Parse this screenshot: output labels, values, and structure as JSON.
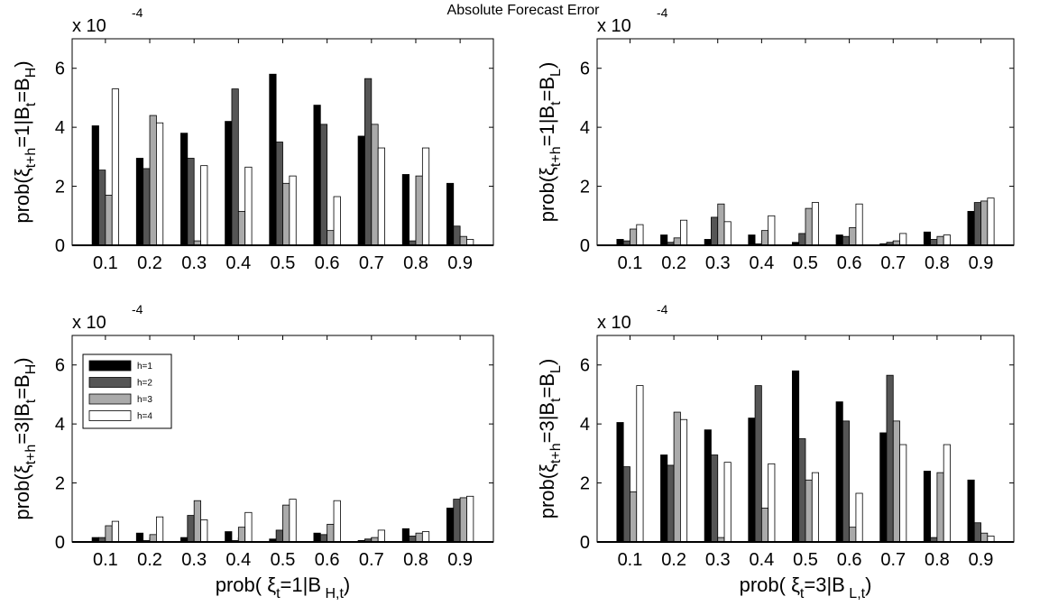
{
  "figure_title": "Absolute Forecast Error",
  "legend": {
    "entries": [
      "h=1",
      "h=2",
      "h=3",
      "h=4"
    ]
  },
  "colors": {
    "h1": "#000000",
    "h2": "#555555",
    "h3": "#aaaaaa",
    "h4": "#ffffff"
  },
  "panels": [
    {
      "multiplier": "x 10",
      "exponent": "-4",
      "ylabel": {
        "pre": "prob(",
        "xi": "ξ",
        "sub1": "t+h",
        "mid": "=1|B",
        "sub2": "t",
        "mid2": "=B",
        "sub3": "H",
        "post": ")"
      }
    },
    {
      "multiplier": "x 10",
      "exponent": "-4",
      "ylabel": {
        "pre": "prob(",
        "xi": "ξ",
        "sub1": "t+h",
        "mid": "=1|B",
        "sub2": "t",
        "mid2": "=B",
        "sub3": "L",
        "post": ")"
      }
    },
    {
      "multiplier": "x 10",
      "exponent": "-4",
      "ylabel": {
        "pre": "prob(",
        "xi": "ξ",
        "sub1": "t+h",
        "mid": "=3|B",
        "sub2": "t",
        "mid2": "=B",
        "sub3": "H",
        "post": ")"
      },
      "xlabel": {
        "pre": "prob(  ",
        "xi": "ξ",
        "sub1": "t",
        "mid": "=1|B",
        "sub2": " H,t",
        "post": ")"
      }
    },
    {
      "multiplier": "x 10",
      "exponent": "-4",
      "ylabel": {
        "pre": "prob(",
        "xi": "ξ",
        "sub1": "t+h",
        "mid": "=3|B",
        "sub2": "t",
        "mid2": "=B",
        "sub3": "L",
        "post": ")"
      },
      "xlabel": {
        "pre": "prob(  ",
        "xi": "ξ",
        "sub1": "t",
        "mid": "=3|B",
        "sub2": " L,t",
        "post": ")"
      }
    }
  ],
  "chart_data": [
    {
      "type": "bar",
      "panel": "top-left",
      "categories": [
        "0.1",
        "0.2",
        "0.3",
        "0.4",
        "0.5",
        "0.6",
        "0.7",
        "0.8",
        "0.9"
      ],
      "yticks": [
        "0",
        "2",
        "4",
        "6"
      ],
      "ylim": [
        0,
        7
      ],
      "y_scale_factor": "1e-4",
      "legend": "none",
      "series": [
        {
          "name": "h=1",
          "values": [
            4.05,
            2.95,
            3.8,
            4.2,
            5.8,
            4.75,
            3.7,
            2.4,
            2.1
          ]
        },
        {
          "name": "h=2",
          "values": [
            2.55,
            2.6,
            2.95,
            5.3,
            3.5,
            4.1,
            5.65,
            0.15,
            0.65
          ]
        },
        {
          "name": "h=3",
          "values": [
            1.7,
            4.4,
            0.15,
            1.15,
            2.1,
            0.5,
            4.1,
            2.35,
            0.3
          ]
        },
        {
          "name": "h=4",
          "values": [
            5.3,
            4.15,
            2.7,
            2.65,
            2.35,
            1.65,
            3.3,
            3.3,
            0.2
          ]
        }
      ]
    },
    {
      "type": "bar",
      "panel": "top-right",
      "categories": [
        "0.1",
        "0.2",
        "0.3",
        "0.4",
        "0.5",
        "0.6",
        "0.7",
        "0.8",
        "0.9"
      ],
      "yticks": [
        "0",
        "2",
        "4",
        "6"
      ],
      "ylim": [
        0,
        7
      ],
      "y_scale_factor": "1e-4",
      "legend": "none",
      "series": [
        {
          "name": "h=1",
          "values": [
            0.2,
            0.35,
            0.2,
            0.35,
            0.1,
            0.35,
            0.05,
            0.45,
            1.15
          ]
        },
        {
          "name": "h=2",
          "values": [
            0.15,
            0.1,
            0.95,
            0.05,
            0.4,
            0.3,
            0.1,
            0.2,
            1.45
          ]
        },
        {
          "name": "h=3",
          "values": [
            0.55,
            0.25,
            1.4,
            0.5,
            1.25,
            0.6,
            0.15,
            0.3,
            1.5
          ]
        },
        {
          "name": "h=4",
          "values": [
            0.7,
            0.85,
            0.8,
            1.0,
            1.45,
            1.4,
            0.4,
            0.35,
            1.6
          ]
        }
      ]
    },
    {
      "type": "bar",
      "panel": "bottom-left",
      "categories": [
        "0.1",
        "0.2",
        "0.3",
        "0.4",
        "0.5",
        "0.6",
        "0.7",
        "0.8",
        "0.9"
      ],
      "yticks": [
        "0",
        "2",
        "4",
        "6"
      ],
      "ylim": [
        0,
        7
      ],
      "y_scale_factor": "1e-4",
      "legend": "top-left",
      "series": [
        {
          "name": "h=1",
          "values": [
            0.15,
            0.3,
            0.15,
            0.35,
            0.1,
            0.3,
            0.05,
            0.45,
            1.15
          ]
        },
        {
          "name": "h=2",
          "values": [
            0.15,
            0.05,
            0.9,
            0.05,
            0.4,
            0.25,
            0.1,
            0.2,
            1.45
          ]
        },
        {
          "name": "h=3",
          "values": [
            0.55,
            0.25,
            1.4,
            0.5,
            1.25,
            0.6,
            0.15,
            0.3,
            1.5
          ]
        },
        {
          "name": "h=4",
          "values": [
            0.7,
            0.85,
            0.75,
            1.0,
            1.45,
            1.4,
            0.4,
            0.35,
            1.55
          ]
        }
      ]
    },
    {
      "type": "bar",
      "panel": "bottom-right",
      "categories": [
        "0.1",
        "0.2",
        "0.3",
        "0.4",
        "0.5",
        "0.6",
        "0.7",
        "0.8",
        "0.9"
      ],
      "yticks": [
        "0",
        "2",
        "4",
        "6"
      ],
      "ylim": [
        0,
        7
      ],
      "y_scale_factor": "1e-4",
      "legend": "none",
      "series": [
        {
          "name": "h=1",
          "values": [
            4.05,
            2.95,
            3.8,
            4.2,
            5.8,
            4.75,
            3.7,
            2.4,
            2.1
          ]
        },
        {
          "name": "h=2",
          "values": [
            2.55,
            2.6,
            2.95,
            5.3,
            3.5,
            4.1,
            5.65,
            0.15,
            0.65
          ]
        },
        {
          "name": "h=3",
          "values": [
            1.7,
            4.4,
            0.15,
            1.15,
            2.1,
            0.5,
            4.1,
            2.35,
            0.3
          ]
        },
        {
          "name": "h=4",
          "values": [
            5.3,
            4.15,
            2.7,
            2.65,
            2.35,
            1.65,
            3.3,
            3.3,
            0.2
          ]
        }
      ]
    }
  ]
}
